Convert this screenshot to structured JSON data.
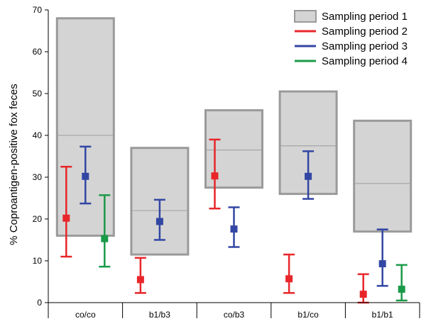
{
  "chart_data": {
    "type": "range-box-with-error-bars",
    "title": "",
    "xlabel": "",
    "ylabel": "% Coproantigen-positive fox feces",
    "ylim": [
      0,
      70
    ],
    "yticks": [
      0,
      10,
      20,
      30,
      40,
      50,
      60,
      70
    ],
    "categories": [
      "co/co",
      "b1/b3",
      "co/b3",
      "b1/co",
      "b1/b1"
    ],
    "grid": false,
    "legend_position": "top-right",
    "colors": {
      "Sampling period 1": "#d4d4d4",
      "Sampling period 1 border": "#9a9a9a",
      "Sampling period 2": "#e8262a",
      "Sampling period 3": "#3246a3",
      "Sampling period 4": "#1a9a48"
    },
    "series": [
      {
        "name": "Sampling period 1",
        "kind": "box",
        "values": [
          {
            "low": 16,
            "mid": 40,
            "high": 68
          },
          {
            "low": 11.5,
            "mid": 22,
            "high": 37
          },
          {
            "low": 27.5,
            "mid": 36.5,
            "high": 46
          },
          {
            "low": 26,
            "mid": 37.5,
            "high": 50.5
          },
          {
            "low": 17,
            "mid": 28.5,
            "high": 43.5
          }
        ]
      },
      {
        "name": "Sampling period 2",
        "kind": "errorbar",
        "values": [
          {
            "low": 11,
            "mid": 20.2,
            "high": 32.5
          },
          {
            "low": 2.3,
            "mid": 5.5,
            "high": 10.7
          },
          {
            "low": 22.5,
            "mid": 30.3,
            "high": 39
          },
          {
            "low": 2.3,
            "mid": 5.7,
            "high": 11.5
          },
          {
            "low": 0,
            "mid": 2,
            "high": 6.8
          }
        ]
      },
      {
        "name": "Sampling period 3",
        "kind": "errorbar",
        "values": [
          {
            "low": 23.7,
            "mid": 30.2,
            "high": 37.3
          },
          {
            "low": 15,
            "mid": 19.4,
            "high": 24.6
          },
          {
            "low": 13.3,
            "mid": 17.6,
            "high": 22.8
          },
          {
            "low": 24.8,
            "mid": 30.2,
            "high": 36.2
          },
          {
            "low": 4,
            "mid": 9.3,
            "high": 17.5
          }
        ]
      },
      {
        "name": "Sampling period 4",
        "kind": "errorbar",
        "values": [
          {
            "low": 8.6,
            "mid": 15.3,
            "high": 25.7
          },
          null,
          null,
          null,
          {
            "low": 0.5,
            "mid": 3.2,
            "high": 9
          }
        ]
      }
    ]
  }
}
